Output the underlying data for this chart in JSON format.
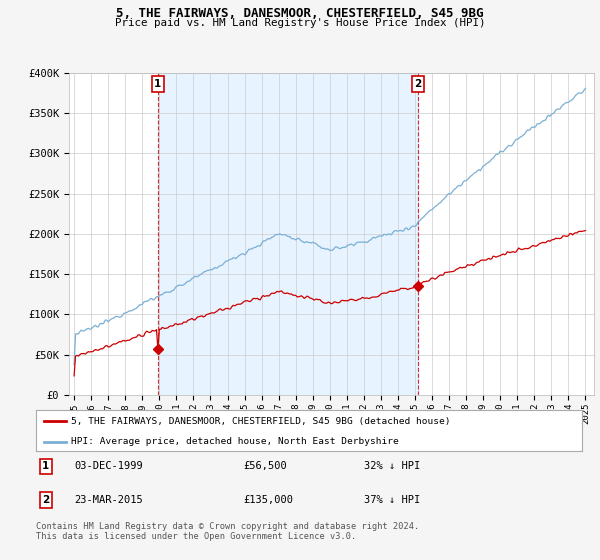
{
  "title": "5, THE FAIRWAYS, DANESMOOR, CHESTERFIELD, S45 9BG",
  "subtitle": "Price paid vs. HM Land Registry's House Price Index (HPI)",
  "red_label": "5, THE FAIRWAYS, DANESMOOR, CHESTERFIELD, S45 9BG (detached house)",
  "blue_label": "HPI: Average price, detached house, North East Derbyshire",
  "sale1_date": "03-DEC-1999",
  "sale1_price": 56500,
  "sale1_note": "32% ↓ HPI",
  "sale2_date": "23-MAR-2015",
  "sale2_price": 135000,
  "sale2_note": "37% ↓ HPI",
  "footer": "Contains HM Land Registry data © Crown copyright and database right 2024.\nThis data is licensed under the Open Government Licence v3.0.",
  "hpi_color": "#7bafd4",
  "price_color": "#cc0000",
  "shade_color": "#ddeeff",
  "ylim": [
    0,
    400000
  ],
  "background_color": "#f5f5f5",
  "plot_bg": "#ffffff",
  "yticks": [
    0,
    50000,
    100000,
    150000,
    200000,
    250000,
    300000,
    350000,
    400000
  ],
  "ytick_labels": [
    "£0",
    "£50K",
    "£100K",
    "£150K",
    "£200K",
    "£250K",
    "£300K",
    "£350K",
    "£400K"
  ],
  "sale1_year": 1999.917,
  "sale2_year": 2015.208
}
